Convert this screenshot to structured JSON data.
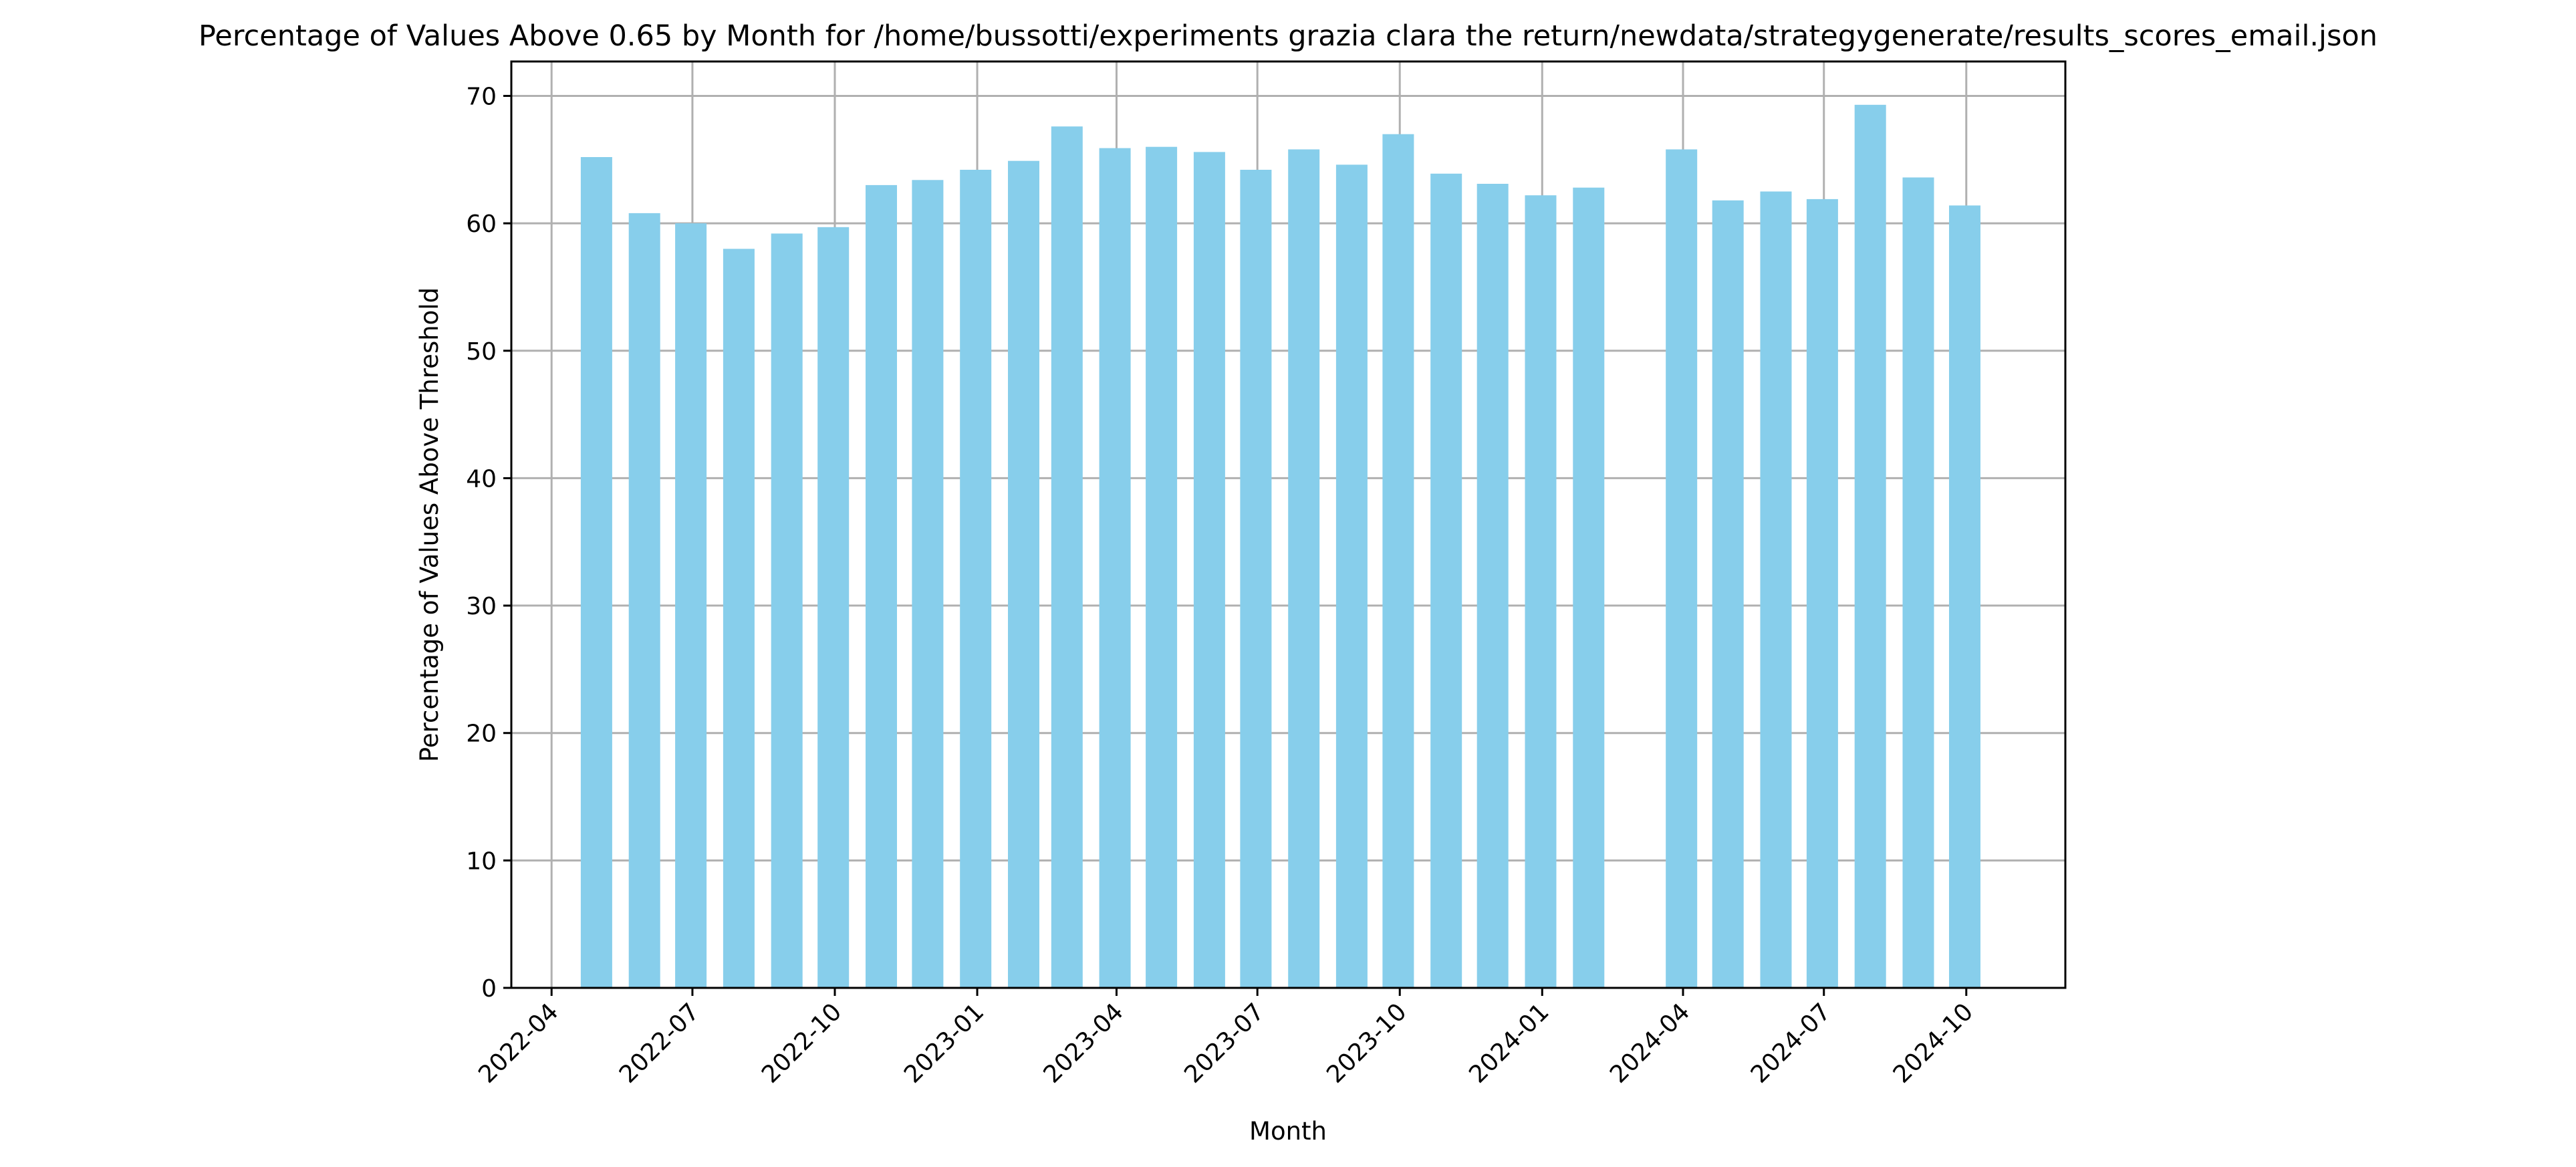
{
  "chart_data": {
    "type": "bar",
    "title": "Percentage of Values Above 0.65 by Month for /home/bussotti/experiments grazia clara the return/newdata/strategygenerate/results_scores_email.json",
    "xlabel": "Month",
    "ylabel": "Percentage of Values Above Threshold",
    "x_axis": {
      "type": "date",
      "range": [
        "2022-03-06",
        "2024-12-04"
      ],
      "tick_labels": [
        "2022-04",
        "2022-07",
        "2022-10",
        "2023-01",
        "2023-04",
        "2023-07",
        "2023-10",
        "2024-01",
        "2024-04",
        "2024-07",
        "2024-10"
      ],
      "tick_label_rotation": 45
    },
    "y_axis": {
      "range": [
        0,
        72.7
      ],
      "ticks": [
        0,
        10,
        20,
        30,
        40,
        50,
        60,
        70
      ]
    },
    "grid": true,
    "bar_color": "#87ceeb",
    "categories": [
      "2022-04",
      "2022-05",
      "2022-06",
      "2022-07",
      "2022-08",
      "2022-09",
      "2022-10",
      "2022-11",
      "2022-12",
      "2023-01",
      "2023-02",
      "2023-03",
      "2023-04",
      "2023-05",
      "2023-06",
      "2023-07",
      "2023-08",
      "2023-09",
      "2023-10",
      "2023-11",
      "2023-12",
      "2024-01",
      "2024-03",
      "2024-04",
      "2024-05",
      "2024-06",
      "2024-07",
      "2024-08",
      "2024-09"
    ],
    "bar_dates": [
      "2022-04-30",
      "2022-05-31",
      "2022-06-30",
      "2022-07-31",
      "2022-08-31",
      "2022-09-30",
      "2022-10-31",
      "2022-11-30",
      "2022-12-31",
      "2023-01-31",
      "2023-02-28",
      "2023-03-31",
      "2023-04-30",
      "2023-05-31",
      "2023-06-30",
      "2023-07-31",
      "2023-08-31",
      "2023-09-30",
      "2023-10-31",
      "2023-11-30",
      "2023-12-31",
      "2024-01-31",
      "2024-03-31",
      "2024-04-30",
      "2024-05-31",
      "2024-06-30",
      "2024-07-31",
      "2024-08-31",
      "2024-09-30"
    ],
    "values": [
      65.2,
      60.8,
      60.0,
      58.0,
      59.2,
      59.7,
      63.0,
      63.4,
      64.2,
      64.9,
      67.6,
      65.9,
      66.0,
      65.6,
      64.2,
      65.8,
      64.6,
      67.0,
      63.9,
      63.1,
      62.2,
      62.8,
      65.8,
      61.8,
      62.5,
      61.9,
      69.3,
      63.6,
      61.4
    ]
  }
}
